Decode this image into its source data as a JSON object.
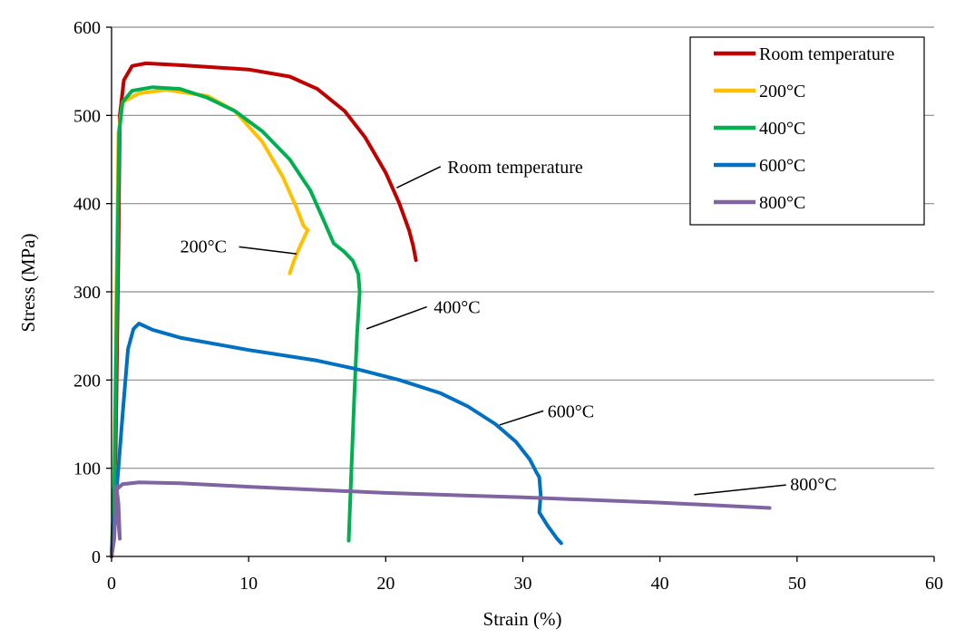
{
  "chart_data": {
    "type": "line",
    "title": "",
    "xlabel": "Strain (%)",
    "ylabel": "Stress (MPa)",
    "xlim": [
      0,
      60
    ],
    "ylim": [
      0,
      600
    ],
    "xticks": [
      0,
      10,
      20,
      30,
      40,
      50,
      60
    ],
    "yticks": [
      0,
      100,
      200,
      300,
      400,
      500,
      600
    ],
    "grid": "horizontal",
    "legend_position": "top-right",
    "series": [
      {
        "name": "Room temperature",
        "color": "#c00000",
        "points": [
          [
            0,
            0
          ],
          [
            0.3,
            120
          ],
          [
            0.5,
            350
          ],
          [
            0.6,
            500
          ],
          [
            0.9,
            540
          ],
          [
            1.5,
            556
          ],
          [
            2.5,
            559
          ],
          [
            5,
            557
          ],
          [
            10,
            552
          ],
          [
            13,
            544
          ],
          [
            15,
            530
          ],
          [
            17,
            505
          ],
          [
            18.5,
            475
          ],
          [
            20,
            435
          ],
          [
            21,
            400
          ],
          [
            21.7,
            370
          ],
          [
            22,
            352
          ],
          [
            22.2,
            336
          ]
        ]
      },
      {
        "name": "200°C",
        "color": "#ffc000",
        "points": [
          [
            0,
            0
          ],
          [
            0.2,
            80
          ],
          [
            0.35,
            300
          ],
          [
            0.5,
            480
          ],
          [
            0.8,
            515
          ],
          [
            2,
            525
          ],
          [
            4,
            529
          ],
          [
            7,
            522
          ],
          [
            9,
            505
          ],
          [
            11,
            470
          ],
          [
            12.5,
            430
          ],
          [
            13.5,
            395
          ],
          [
            14,
            375
          ],
          [
            14.3,
            370
          ],
          [
            13.7,
            350
          ],
          [
            13.3,
            335
          ],
          [
            13,
            321
          ]
        ]
      },
      {
        "name": "400°C",
        "color": "#00b050",
        "points": [
          [
            0,
            0
          ],
          [
            0.2,
            80
          ],
          [
            0.4,
            300
          ],
          [
            0.55,
            480
          ],
          [
            0.8,
            515
          ],
          [
            1.5,
            528
          ],
          [
            3,
            532
          ],
          [
            5,
            530
          ],
          [
            7,
            520
          ],
          [
            9,
            505
          ],
          [
            11,
            482
          ],
          [
            13,
            450
          ],
          [
            14.5,
            415
          ],
          [
            15.5,
            380
          ],
          [
            16.2,
            355
          ],
          [
            17,
            345
          ],
          [
            17.6,
            335
          ],
          [
            18,
            320
          ],
          [
            18.1,
            300
          ],
          [
            17.9,
            250
          ],
          [
            17.7,
            180
          ],
          [
            17.5,
            100
          ],
          [
            17.35,
            40
          ],
          [
            17.3,
            18
          ]
        ]
      },
      {
        "name": "600°C",
        "color": "#0070c0",
        "points": [
          [
            0,
            0
          ],
          [
            0.3,
            60
          ],
          [
            0.8,
            160
          ],
          [
            1.2,
            235
          ],
          [
            1.6,
            258
          ],
          [
            2,
            264
          ],
          [
            3,
            257
          ],
          [
            5,
            248
          ],
          [
            10,
            234
          ],
          [
            15,
            222
          ],
          [
            18,
            212
          ],
          [
            21,
            200
          ],
          [
            24,
            185
          ],
          [
            26,
            170
          ],
          [
            28,
            150
          ],
          [
            29.5,
            130
          ],
          [
            30.5,
            110
          ],
          [
            31,
            95
          ],
          [
            31.2,
            90
          ],
          [
            31.3,
            70
          ],
          [
            31.2,
            50
          ],
          [
            31.8,
            35
          ],
          [
            32.5,
            20
          ],
          [
            32.8,
            15
          ]
        ]
      },
      {
        "name": "800°C",
        "color": "#8064a2",
        "points": [
          [
            0,
            0
          ],
          [
            0.2,
            20
          ],
          [
            0.3,
            60
          ],
          [
            0.35,
            80
          ],
          [
            0.5,
            60
          ],
          [
            0.6,
            20
          ],
          [
            0.3,
            75
          ],
          [
            0.8,
            82
          ],
          [
            2,
            84
          ],
          [
            5,
            83
          ],
          [
            10,
            79
          ],
          [
            20,
            72
          ],
          [
            30,
            67
          ],
          [
            40,
            61
          ],
          [
            48,
            55
          ]
        ]
      }
    ],
    "annotations": [
      {
        "text": "Room temperature",
        "label_at": [
          24.5,
          442
        ],
        "line_from": [
          24,
          442
        ],
        "line_to": [
          20.8,
          418
        ]
      },
      {
        "text": "200°C",
        "label_at": [
          5,
          352
        ],
        "line_from": [
          9.3,
          351
        ],
        "line_to": [
          13.5,
          343
        ]
      },
      {
        "text": "400°C",
        "label_at": [
          23.5,
          283
        ],
        "line_from": [
          23,
          283
        ],
        "line_to": [
          18.6,
          258
        ]
      },
      {
        "text": "600°C",
        "label_at": [
          31.8,
          165
        ],
        "line_from": [
          31.5,
          165
        ],
        "line_to": [
          28.3,
          149
        ]
      },
      {
        "text": "800°C",
        "label_at": [
          49.5,
          82
        ],
        "line_from": [
          49.2,
          81
        ],
        "line_to": [
          42.5,
          70
        ]
      }
    ]
  }
}
